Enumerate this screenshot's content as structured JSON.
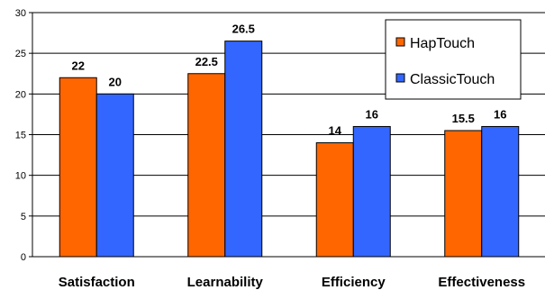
{
  "chart_data": {
    "type": "bar",
    "categories": [
      "Satisfaction",
      "Learnability",
      "Efficiency",
      "Effectiveness"
    ],
    "series": [
      {
        "name": "HapTouch",
        "values": [
          22,
          22.5,
          14,
          15.5
        ],
        "labels": [
          "22",
          "22.5",
          "14",
          "15.5"
        ],
        "color": "#ff6600"
      },
      {
        "name": "ClassicTouch",
        "values": [
          20,
          26.5,
          16,
          16
        ],
        "labels": [
          "20",
          "26.5",
          "16",
          "16"
        ],
        "color": "#3366ff"
      }
    ],
    "ylim": [
      0,
      30
    ],
    "yticks": [
      0,
      5,
      10,
      15,
      20,
      25,
      30
    ],
    "grid": true,
    "legend_position": "top-right",
    "plot_background": "#ffffff",
    "gridline_color": "#000000"
  }
}
